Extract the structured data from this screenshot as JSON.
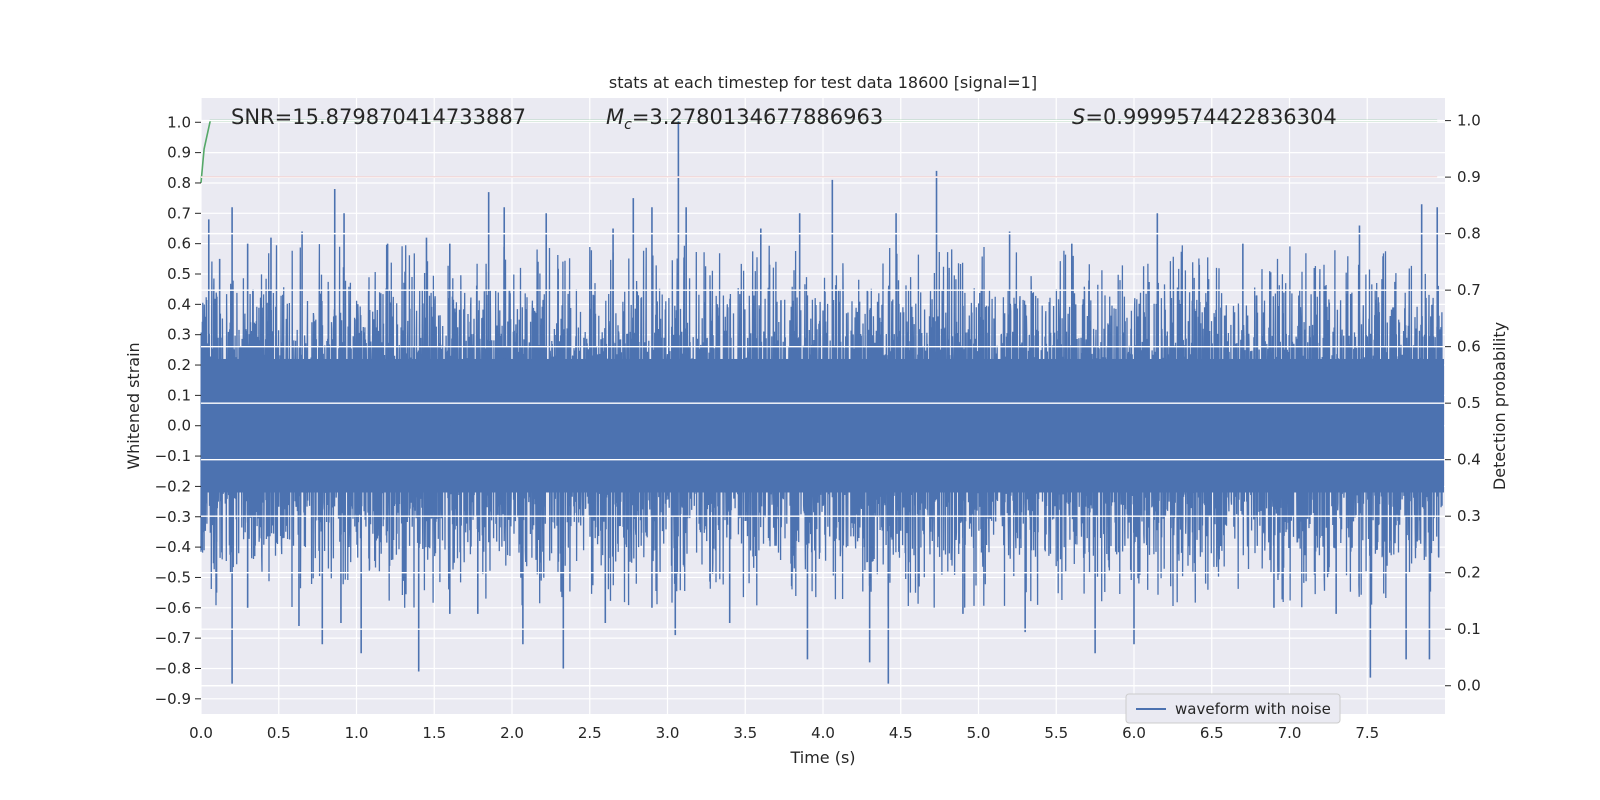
{
  "chart_data": {
    "type": "line",
    "title": "stats at each timestep for test data 18600 [signal=1]",
    "xlabel": "Time (s)",
    "ylabel_left": "Whitened strain",
    "ylabel_right": "Detection probability",
    "xlim": [
      0.0,
      8.0
    ],
    "ylim_left": [
      -0.95,
      1.08
    ],
    "ylim_right": [
      -0.05,
      1.04
    ],
    "x_ticks": [
      "0.0",
      "0.5",
      "1.0",
      "1.5",
      "2.0",
      "2.5",
      "3.0",
      "3.5",
      "4.0",
      "4.5",
      "5.0",
      "5.5",
      "6.0",
      "6.5",
      "7.0",
      "7.5"
    ],
    "y_ticks_left": [
      "1.0",
      "0.9",
      "0.8",
      "0.7",
      "0.6",
      "0.5",
      "0.4",
      "0.3",
      "0.2",
      "0.1",
      "0.0",
      "−0.1",
      "−0.2",
      "−0.3",
      "−0.4",
      "−0.5",
      "−0.6",
      "−0.7",
      "−0.8",
      "−0.9"
    ],
    "y_ticks_right": [
      "1.0",
      "0.9",
      "0.8",
      "0.7",
      "0.6",
      "0.5",
      "0.4",
      "0.3",
      "0.2",
      "0.1",
      "0.0"
    ],
    "annotations": {
      "snr": "SNR=15.879870414733887",
      "mc_symbol": "M",
      "mc_sub": "c",
      "mc_value": "=3.2780134677886963",
      "s_symbol": "S",
      "s_value": "=0.9999574422836304"
    },
    "legend": {
      "placement": "lower-right",
      "entries": [
        "waveform with noise"
      ]
    },
    "grid": true,
    "series": [
      {
        "name": "waveform with noise",
        "axis": "left",
        "color": "#4c72b0",
        "noise_band": [
          -0.3,
          0.3
        ],
        "spikes": [
          [
            0.05,
            0.68
          ],
          [
            0.12,
            0.55
          ],
          [
            0.2,
            0.72
          ],
          [
            0.3,
            0.6
          ],
          [
            0.45,
            0.62
          ],
          [
            0.65,
            0.64
          ],
          [
            0.86,
            0.78
          ],
          [
            0.92,
            0.7
          ],
          [
            1.2,
            0.6
          ],
          [
            1.45,
            0.62
          ],
          [
            1.6,
            0.6
          ],
          [
            1.85,
            0.77
          ],
          [
            1.95,
            0.72
          ],
          [
            2.22,
            0.7
          ],
          [
            2.65,
            0.65
          ],
          [
            2.78,
            0.75
          ],
          [
            2.9,
            0.72
          ],
          [
            3.07,
            1.01
          ],
          [
            3.12,
            0.72
          ],
          [
            3.6,
            0.65
          ],
          [
            3.85,
            0.7
          ],
          [
            4.06,
            0.81
          ],
          [
            4.47,
            0.7
          ],
          [
            4.73,
            0.84
          ],
          [
            5.2,
            0.64
          ],
          [
            5.6,
            0.6
          ],
          [
            6.15,
            0.7
          ],
          [
            6.7,
            0.6
          ],
          [
            7.45,
            0.66
          ],
          [
            7.85,
            0.73
          ],
          [
            7.95,
            0.72
          ],
          [
            0.1,
            -0.55
          ],
          [
            0.2,
            -0.85
          ],
          [
            0.3,
            -0.6
          ],
          [
            0.63,
            -0.66
          ],
          [
            0.78,
            -0.72
          ],
          [
            0.9,
            -0.65
          ],
          [
            1.03,
            -0.75
          ],
          [
            1.4,
            -0.81
          ],
          [
            1.6,
            -0.62
          ],
          [
            1.78,
            -0.62
          ],
          [
            2.07,
            -0.72
          ],
          [
            2.33,
            -0.8
          ],
          [
            2.6,
            -0.65
          ],
          [
            2.9,
            -0.6
          ],
          [
            3.05,
            -0.69
          ],
          [
            3.4,
            -0.65
          ],
          [
            3.9,
            -0.77
          ],
          [
            4.3,
            -0.78
          ],
          [
            4.42,
            -0.85
          ],
          [
            4.9,
            -0.62
          ],
          [
            5.3,
            -0.68
          ],
          [
            5.75,
            -0.75
          ],
          [
            6.0,
            -0.72
          ],
          [
            6.9,
            -0.6
          ],
          [
            7.3,
            -0.62
          ],
          [
            7.52,
            -0.83
          ],
          [
            7.75,
            -0.77
          ],
          [
            7.9,
            -0.77
          ]
        ]
      },
      {
        "name": "",
        "axis": "right",
        "color": "#55a868",
        "x": [
          0.0,
          0.02,
          0.06,
          7.95
        ],
        "y": [
          0.89,
          0.95,
          1.0,
          1.0
        ]
      },
      {
        "name": "",
        "axis": "right",
        "color": "#c44e52",
        "x": [
          0.0,
          7.95
        ],
        "y": [
          0.9,
          0.9
        ]
      }
    ]
  }
}
